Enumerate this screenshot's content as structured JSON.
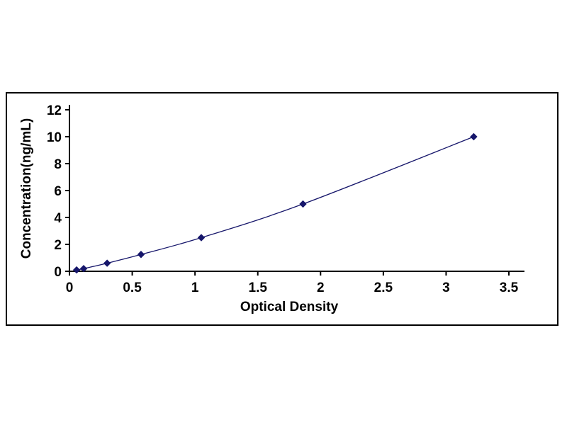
{
  "figure": {
    "background": "#ffffff",
    "border_color": "#000000"
  },
  "chart_data": {
    "type": "line",
    "title": "",
    "xlabel": "Optical Density",
    "ylabel": "Concentration(ng/mL)",
    "xlim": [
      0,
      3.5
    ],
    "ylim": [
      0,
      12
    ],
    "xticks": [
      0,
      0.5,
      1,
      1.5,
      2,
      2.5,
      3,
      3.5
    ],
    "xtick_labels": [
      "0",
      "0.5",
      "1",
      "1.5",
      "2",
      "2.5",
      "3",
      "3.5"
    ],
    "yticks": [
      0,
      2,
      4,
      6,
      8,
      10,
      12
    ],
    "ytick_labels": [
      "0",
      "2",
      "4",
      "6",
      "8",
      "10",
      "12"
    ],
    "grid": false,
    "legend": false,
    "marker": "diamond",
    "axis_color": "#000000",
    "line_color": "#16166b",
    "marker_color": "#16166b",
    "points": [
      {
        "x": 0.057,
        "y": 0.1
      },
      {
        "x": 0.113,
        "y": 0.2
      },
      {
        "x": 0.3,
        "y": 0.6
      },
      {
        "x": 0.57,
        "y": 1.25
      },
      {
        "x": 1.05,
        "y": 2.5
      },
      {
        "x": 1.86,
        "y": 5.0
      },
      {
        "x": 3.22,
        "y": 10.0
      }
    ]
  }
}
